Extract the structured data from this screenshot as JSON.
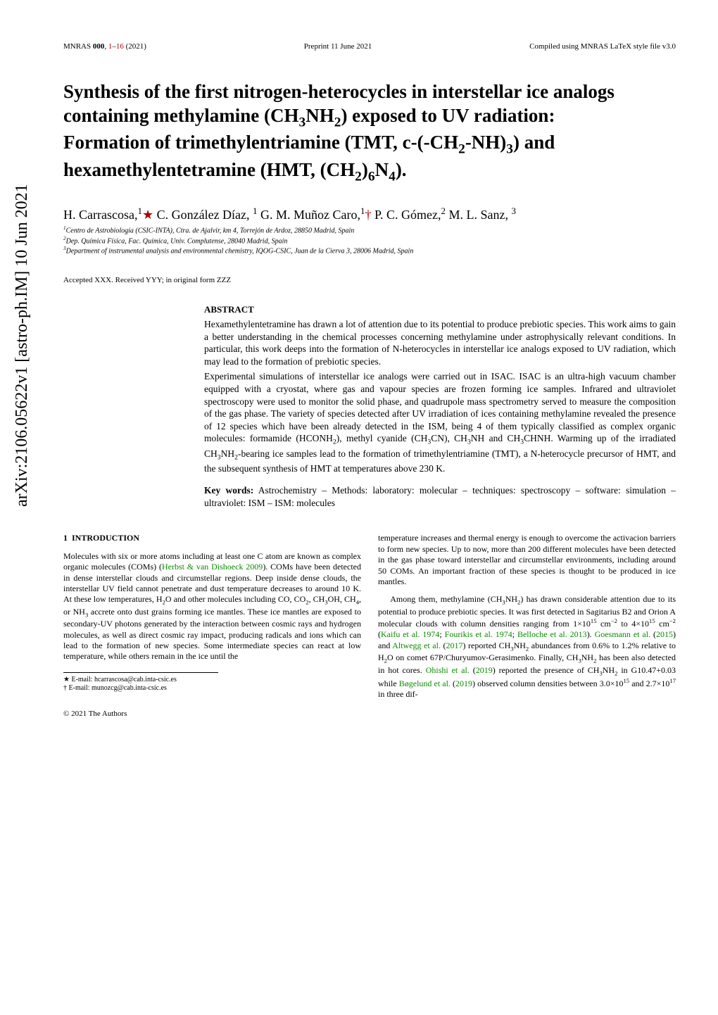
{
  "header": {
    "left": "MNRAS 000, 1–16 (2021)",
    "center": "Preprint 11 June 2021",
    "right": "Compiled using MNRAS LaTeX style file v3.0"
  },
  "arxiv_stamp": "arXiv:2106.05622v1  [astro-ph.IM]  10 Jun 2021",
  "title_parts": {
    "l1a": "Synthesis of the first nitrogen-heterocycles in interstellar ice analogs",
    "l2a": "containing methylamine (CH",
    "l2b": "NH",
    "l2c": ") exposed to UV radiation:",
    "l3a": "Formation of trimethylentriamine (TMT, c-(-CH",
    "l3b": "-NH)",
    "l3c": ") and",
    "l4a": "hexamethylentetramine (HMT, (CH",
    "l4b": ")",
    "l4c": "N",
    "l4d": ")."
  },
  "title_subs": {
    "s3": "3",
    "s2": "2",
    "s6": "6",
    "s4": "4"
  },
  "authors": {
    "a1": "H. Carrascosa,",
    "a2": " C. González Díaz, ",
    "a3": " G. M. Muñoz Caro,",
    "a4": " P. C. Gómez,",
    "a5": " M. L. Sanz, ",
    "sup1": "1",
    "sup2": "2",
    "sup3": "3",
    "star": "★",
    "dagger": "†"
  },
  "affiliations": {
    "a1_sup": "1",
    "a1": "Centro de Astrobiología (CSIC-INTA), Ctra. de Ajalvir, km 4, Torrejón de Ardoz, 28850 Madrid, Spain",
    "a2_sup": "2",
    "a2": "Dep. Química Física, Fac. Química, Univ. Complutense, 28040 Madrid, Spain",
    "a3_sup": "3",
    "a3": "Department of instrumental analysis and environmental chemistry, IQOG-CSIC, Juan de la Cierva 3, 28006 Madrid, Spain"
  },
  "accepted": "Accepted XXX. Received YYY; in original form ZZZ",
  "abstract": {
    "heading": "ABSTRACT",
    "p1": "Hexamethylentetramine has drawn a lot of attention due to its potential to produce prebiotic species. This work aims to gain a better understanding in the chemical processes concerning methylamine under astrophysically relevant conditions. In particular, this work deeps into the formation of N-heterocycles in interstellar ice analogs exposed to UV radiation, which may lead to the formation of prebiotic species.",
    "p2a": "Experimental simulations of interstellar ice analogs were carried out in ISAC. ISAC is an ultra-high vacuum chamber equipped with a cryostat, where gas and vapour species are frozen forming ice samples. Infrared and ultraviolet spectroscopy were used to monitor the solid phase, and quadrupole mass spectrometry served to measure the composition of the gas phase. The variety of species detected after UV irradiation of ices containing methylamine revealed the presence of 12 species which have been already detected in the ISM, being 4 of them typically classified as complex organic molecules: formamide (HCONH",
    "p2b": "), methyl cyanide (CH",
    "p2c": "CN), CH",
    "p2d": "NH and CH",
    "p2e": "CHNH. Warming up of the irradiated CH",
    "p2f": "NH",
    "p2g": "-bearing ice samples lead to the formation of trimethylentriamine (TMT), a N-heterocycle precursor of HMT, and the subsequent synthesis of HMT at temperatures above 230 K.",
    "kw_label": "Key words:",
    "kw_text": " Astrochemistry – Methods: laboratory: molecular – techniques: spectroscopy – software: simulation – ultraviolet: ISM – ISM: molecules"
  },
  "section1": {
    "num": "1",
    "title": "INTRODUCTION"
  },
  "intro": {
    "left_p1a": "Molecules with six or more atoms including at least one C atom are known as complex organic molecules (COMs) (",
    "left_p1_cite1": "Herbst & van Dishoeck 2009",
    "left_p1b": "). COMs have been detected in dense interstellar clouds and circumstellar regions. Deep inside dense clouds, the interstellar UV field cannot penetrate and dust temperature decreases to around 10 K. At these low temperatures, H",
    "left_p1c": "O and other molecules including CO, CO",
    "left_p1d": ", CH",
    "left_p1e": "OH, CH",
    "left_p1f": ", or NH",
    "left_p1g": " accrete onto dust grains forming ice mantles. These ice mantles are exposed to secondary-UV photons generated by the interaction between cosmic rays and hydrogen molecules, as well as direct cosmic ray impact, producing radicals and ions which can lead to the formation of new species. Some intermediate species can react at low temperature, while others remain in the ice until the ",
    "right_p1": "temperature increases and thermal energy is enough to overcome the activacion barriers to form new species. Up to now, more than 200 different molecules have been detected in the gas phase toward interstellar and circumstellar environments, including around 50 COMs. An important fraction of these species is thought to be produced in ice mantles.",
    "right_p2a": "Among them, methylamine (CH",
    "right_p2b": "NH",
    "right_p2c": ") has drawn considerable attention due to its potential to produce prebiotic species. It was first detected in Sagitarius B2 and Orion A molecular clouds with column densities ranging from 1×10",
    "right_p2d": " cm",
    "right_p2e": " to 4×10",
    "right_p2f": " cm",
    "right_p2g": " (",
    "right_p2_cite1": "Kaifu et al. 1974",
    "right_p2h": "; ",
    "right_p2_cite2": "Fourikis et al. 1974",
    "right_p2i": "; ",
    "right_p2_cite3": "Belloche et al. 2013",
    "right_p2j": "). ",
    "right_p2_cite4": "Goesmann et al.",
    "right_p2k": " (",
    "right_p2_cite4b": "2015",
    "right_p2l": ") and ",
    "right_p2_cite5": "Altwegg et al.",
    "right_p2m": " (",
    "right_p2_cite5b": "2017",
    "right_p2n": ") reported CH",
    "right_p2o": "NH",
    "right_p2p": " abundances from 0.6% to 1.2% relative to H",
    "right_p2q": "O on comet 67P/Churyumov-Gerasimenko. Finally, CH",
    "right_p2r": "NH",
    "right_p2s": " has been also detected in hot cores. ",
    "right_p2_cite6": "Ohishi et al.",
    "right_p2t": " (",
    "right_p2_cite6b": "2019",
    "right_p2u": ") reported the presence of CH",
    "right_p2v": "NH",
    "right_p2w": " in G10.47+0.03 while ",
    "right_p2_cite7": "Bøgelund et al.",
    "right_p2x": " (",
    "right_p2_cite7b": "2019",
    "right_p2y": ") observed column densities between 3.0×10",
    "right_p2z": " and 2.7×10",
    "right_p2aa": " in three dif-",
    "exp15": "15",
    "exp17": "17",
    "expm2": "−2"
  },
  "footnotes": {
    "f1_sym": "★",
    "f1": " E-mail: hcarrascosa@cab.inta-csic.es",
    "f2_sym": "†",
    "f2": " E-mail: munozcg@cab.inta-csic.es"
  },
  "copyright": "© 2021 The Authors",
  "colors": {
    "cite": "#0a8a00",
    "intlink": "#b00000"
  }
}
